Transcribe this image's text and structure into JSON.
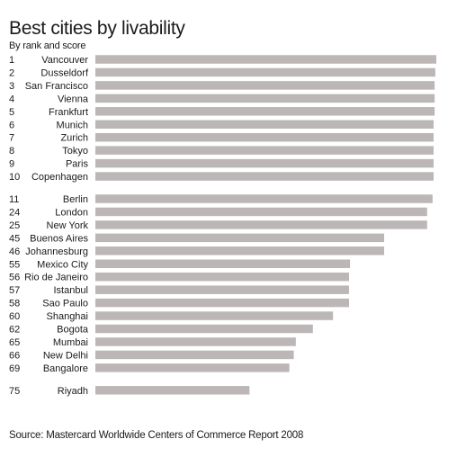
{
  "chart_data": {
    "type": "bar",
    "orientation": "horizontal",
    "title": "Best cities by livability",
    "subtitle": "By rank and score",
    "source": "Source: Mastercard Worldwide Centers of Commerce Report 2008",
    "xlim": [
      0,
      100
    ],
    "grid": false,
    "legend": "none",
    "bar_color": "#bcb7b6",
    "bars": [
      {
        "rank": "1",
        "city": "Vancouver",
        "value": 100
      },
      {
        "rank": "2",
        "city": "Dusseldorf",
        "value": 99.7
      },
      {
        "rank": "3",
        "city": "San Francisco",
        "value": 99.5
      },
      {
        "rank": "4",
        "city": "Vienna",
        "value": 99.5
      },
      {
        "rank": "5",
        "city": "Frankfurt",
        "value": 99.5
      },
      {
        "rank": "6",
        "city": "Munich",
        "value": 99.2
      },
      {
        "rank": "7",
        "city": "Zurich",
        "value": 99.2
      },
      {
        "rank": "8",
        "city": "Tokyo",
        "value": 99.2
      },
      {
        "rank": "9",
        "city": "Paris",
        "value": 99.2
      },
      {
        "rank": "10",
        "city": "Copenhagen",
        "value": 99.2
      },
      {
        "rank": "11",
        "city": "Berlin",
        "value": 98.9,
        "group_break": true
      },
      {
        "rank": "24",
        "city": "London",
        "value": 97.3
      },
      {
        "rank": "25",
        "city": "New York",
        "value": 97.3
      },
      {
        "rank": "45",
        "city": "Buenos Aires",
        "value": 84.7
      },
      {
        "rank": "46",
        "city": "Johannesburg",
        "value": 84.7
      },
      {
        "rank": "55",
        "city": "Mexico City",
        "value": 74.7
      },
      {
        "rank": "56",
        "city": "Rio de Janeiro",
        "value": 74.4
      },
      {
        "rank": "57",
        "city": "Istanbul",
        "value": 74.4
      },
      {
        "rank": "58",
        "city": "Sao Paulo",
        "value": 74.4
      },
      {
        "rank": "60",
        "city": "Shanghai",
        "value": 69.7
      },
      {
        "rank": "62",
        "city": "Bogota",
        "value": 63.8
      },
      {
        "rank": "65",
        "city": "Mumbai",
        "value": 58.8
      },
      {
        "rank": "66",
        "city": "New Delhi",
        "value": 58.2
      },
      {
        "rank": "69",
        "city": "Bangalore",
        "value": 56.9
      },
      {
        "rank": "75",
        "city": "Riyadh",
        "value": 45.2,
        "group_break": true
      }
    ]
  }
}
